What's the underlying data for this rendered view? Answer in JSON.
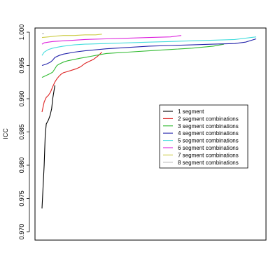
{
  "chart_data": {
    "type": "line",
    "title": "",
    "xlabel": "",
    "ylabel": "ICC",
    "ylim": [
      0.97,
      1.0
    ],
    "xlim": [
      0,
      100
    ],
    "yticks": [
      "0.970",
      "0.975",
      "0.980",
      "0.985",
      "0.990",
      "0.995",
      "1.000"
    ],
    "grid": false,
    "legend_position": "right",
    "series": [
      {
        "name": "1 segment",
        "color": "#000000",
        "x": [
          0,
          1,
          1.5,
          2,
          3,
          3.8,
          4.5,
          5,
          6
        ],
        "y": [
          0.9735,
          0.98,
          0.9845,
          0.9862,
          0.9868,
          0.9875,
          0.9885,
          0.99,
          0.992
        ]
      },
      {
        "name": "2 segment combinations",
        "color": "#dd2222",
        "x": [
          0,
          1,
          2,
          3,
          4,
          5,
          6,
          7,
          8,
          9,
          10,
          12,
          14,
          16,
          18,
          20,
          22,
          24,
          26,
          28
        ],
        "y": [
          0.988,
          0.9895,
          0.9902,
          0.9905,
          0.991,
          0.9918,
          0.9925,
          0.993,
          0.9934,
          0.9937,
          0.9939,
          0.9941,
          0.9943,
          0.9945,
          0.9948,
          0.9953,
          0.9956,
          0.9959,
          0.9964,
          0.997
        ]
      },
      {
        "name": "3 segment combinations",
        "color": "#33bb33",
        "x": [
          0,
          2,
          4,
          5,
          6,
          7,
          8,
          10,
          12,
          15,
          18,
          20,
          25,
          30,
          35,
          40,
          50,
          60,
          70,
          80,
          85
        ],
        "y": [
          0.9932,
          0.9935,
          0.9938,
          0.994,
          0.9945,
          0.995,
          0.9952,
          0.9955,
          0.9957,
          0.9959,
          0.9961,
          0.9962,
          0.9965,
          0.9968,
          0.9969,
          0.997,
          0.9972,
          0.9974,
          0.9976,
          0.9979,
          0.9982
        ]
      },
      {
        "name": "4 segment combinations",
        "color": "#2222aa",
        "x": [
          0,
          2,
          4,
          5,
          6,
          8,
          10,
          15,
          20,
          30,
          40,
          50,
          60,
          70,
          80,
          90,
          95,
          100
        ],
        "y": [
          0.995,
          0.9952,
          0.9955,
          0.9958,
          0.9962,
          0.9965,
          0.9967,
          0.997,
          0.9972,
          0.9975,
          0.9977,
          0.9979,
          0.998,
          0.9981,
          0.9982,
          0.9983,
          0.9985,
          0.999
        ]
      },
      {
        "name": "5 segment combinations",
        "color": "#44dddd",
        "x": [
          0,
          1,
          3,
          5,
          8,
          10,
          15,
          20,
          30,
          40,
          50,
          60,
          70,
          80,
          90,
          100
        ],
        "y": [
          0.9965,
          0.997,
          0.9974,
          0.9976,
          0.9978,
          0.9979,
          0.9981,
          0.9982,
          0.9983,
          0.9984,
          0.9985,
          0.9986,
          0.9987,
          0.9988,
          0.9989,
          0.9993
        ]
      },
      {
        "name": "6 segment combinations",
        "color": "#dd22dd",
        "x": [
          0,
          1,
          3,
          5,
          10,
          15,
          20,
          30,
          40,
          50,
          60,
          65
        ],
        "y": [
          0.9982,
          0.9984,
          0.9985,
          0.9986,
          0.9987,
          0.9988,
          0.9989,
          0.999,
          0.9991,
          0.9992,
          0.9993,
          0.9995
        ]
      },
      {
        "name": "7 segment combinations",
        "color": "#cccc44",
        "x": [
          0,
          3,
          6,
          10,
          15,
          20,
          25,
          28
        ],
        "y": [
          0.9992,
          0.9993,
          0.9994,
          0.9995,
          0.9995,
          0.9996,
          0.9996,
          0.9997
        ]
      },
      {
        "name": "8 segment combinations",
        "color": "#bbbbbb",
        "x": [
          0
        ],
        "y": [
          0.9998
        ]
      }
    ]
  }
}
